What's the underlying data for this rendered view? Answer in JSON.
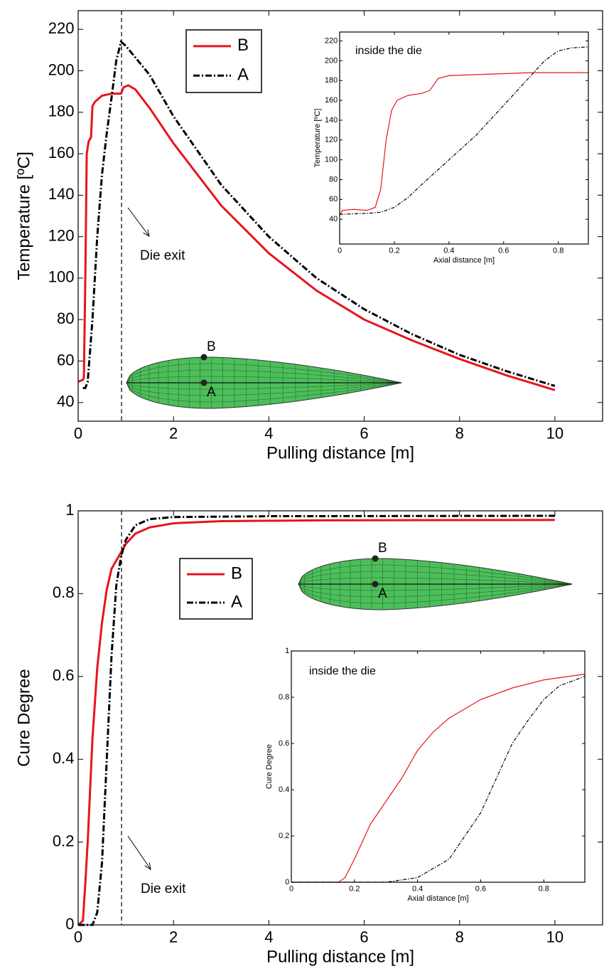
{
  "chart_data": [
    {
      "type": "line",
      "x_label": "Pulling distance [m]",
      "y_label": "Temperature [ºC]",
      "xlim": [
        0,
        11
      ],
      "ylim": [
        31,
        229
      ],
      "xticks": [
        0,
        2,
        4,
        6,
        8,
        10
      ],
      "yticks": [
        40,
        60,
        80,
        100,
        120,
        140,
        160,
        180,
        200,
        220
      ],
      "legend": true,
      "die_exit_x": 0.91,
      "annotations": [
        "Die exit",
        "B",
        "A"
      ],
      "series": [
        {
          "name": "B",
          "color": "#e8141c",
          "style": "solid",
          "x": [
            0,
            0.1,
            0.12,
            0.15,
            0.18,
            0.22,
            0.27,
            0.3,
            0.35,
            0.5,
            0.7,
            0.9,
            0.95,
            1.05,
            1.2,
            1.5,
            2,
            3,
            4,
            5,
            6,
            7,
            8,
            9,
            10
          ],
          "values": [
            50,
            51,
            52,
            100,
            160,
            166,
            168,
            183,
            185,
            188,
            189,
            189,
            192,
            193,
            191,
            182,
            165,
            135,
            112,
            94,
            80,
            70,
            61,
            53,
            46
          ]
        },
        {
          "name": "A",
          "color": "#000000",
          "style": "dashdot",
          "x": [
            0.1,
            0.15,
            0.2,
            0.3,
            0.4,
            0.5,
            0.6,
            0.7,
            0.8,
            0.9,
            1.0,
            1.5,
            2,
            3,
            4,
            5,
            6,
            7,
            8,
            9,
            10
          ],
          "values": [
            47,
            47,
            50,
            80,
            120,
            150,
            170,
            187,
            205,
            214,
            212,
            198,
            178,
            145,
            120,
            100,
            85,
            73,
            63,
            55,
            48
          ]
        }
      ]
    },
    {
      "type": "line",
      "annotation": "inside the die",
      "x_label": "Axial distance [m]",
      "y_label": "Temperature [ºC]",
      "xlim": [
        0,
        0.91
      ],
      "ylim": [
        15,
        229
      ],
      "xticks": [
        0,
        0.2,
        0.4,
        0.6,
        0.8
      ],
      "yticks": [
        40,
        60,
        80,
        100,
        120,
        140,
        160,
        180,
        200,
        220
      ],
      "legend": false,
      "series": [
        {
          "name": "B",
          "color": "#e8141c",
          "style": "solid",
          "x": [
            0,
            0.01,
            0.05,
            0.1,
            0.13,
            0.15,
            0.17,
            0.19,
            0.21,
            0.25,
            0.3,
            0.33,
            0.36,
            0.4,
            0.5,
            0.6,
            0.7,
            0.8,
            0.91
          ],
          "values": [
            44,
            49,
            50,
            49,
            52,
            70,
            120,
            150,
            160,
            165,
            167,
            170,
            182,
            185,
            186,
            187,
            188,
            188,
            188
          ]
        },
        {
          "name": "A",
          "color": "#000000",
          "style": "dashdot",
          "x": [
            0,
            0.1,
            0.15,
            0.2,
            0.25,
            0.3,
            0.4,
            0.5,
            0.6,
            0.7,
            0.75,
            0.8,
            0.85,
            0.91
          ],
          "values": [
            45,
            46,
            47,
            52,
            62,
            75,
            100,
            125,
            155,
            185,
            200,
            210,
            213,
            214
          ]
        }
      ]
    },
    {
      "type": "line",
      "x_label": "Pulling distance [m]",
      "y_label": "Cure Degree",
      "xlim": [
        0,
        11
      ],
      "ylim": [
        0,
        1
      ],
      "xticks": [
        0,
        2,
        4,
        6,
        8,
        10
      ],
      "yticks": [
        0,
        0.2,
        0.4,
        0.6,
        0.8,
        1
      ],
      "legend": true,
      "die_exit_x": 0.91,
      "annotations": [
        "Die exit",
        "B",
        "A"
      ],
      "series": [
        {
          "name": "B",
          "color": "#e8141c",
          "style": "solid",
          "x": [
            0,
            0.1,
            0.15,
            0.2,
            0.3,
            0.4,
            0.5,
            0.6,
            0.7,
            0.8,
            0.9,
            1.0,
            1.2,
            1.5,
            2,
            3,
            5,
            10
          ],
          "values": [
            0,
            0.01,
            0.1,
            0.2,
            0.45,
            0.62,
            0.73,
            0.81,
            0.86,
            0.88,
            0.9,
            0.92,
            0.945,
            0.96,
            0.97,
            0.975,
            0.977,
            0.978
          ]
        },
        {
          "name": "A",
          "color": "#000000",
          "style": "dashdot",
          "x": [
            0,
            0.3,
            0.4,
            0.5,
            0.6,
            0.7,
            0.8,
            0.9,
            1.0,
            1.2,
            1.5,
            2,
            4,
            10
          ],
          "values": [
            0,
            0,
            0.03,
            0.15,
            0.4,
            0.65,
            0.82,
            0.89,
            0.93,
            0.965,
            0.98,
            0.985,
            0.987,
            0.988
          ]
        }
      ]
    },
    {
      "type": "line",
      "annotation": "inside the die",
      "x_label": "Axial distance [m]",
      "y_label": "Cure Degree",
      "xlim": [
        0,
        0.93
      ],
      "ylim": [
        0,
        1
      ],
      "xticks": [
        0,
        0.2,
        0.4,
        0.6,
        0.8
      ],
      "yticks": [
        0,
        0.2,
        0.4,
        0.6,
        0.8,
        1
      ],
      "legend": false,
      "series": [
        {
          "name": "B",
          "color": "#e8141c",
          "style": "solid",
          "x": [
            0,
            0.15,
            0.17,
            0.2,
            0.25,
            0.3,
            0.35,
            0.4,
            0.45,
            0.5,
            0.6,
            0.7,
            0.8,
            0.93
          ],
          "values": [
            0,
            0,
            0.02,
            0.1,
            0.25,
            0.35,
            0.45,
            0.57,
            0.65,
            0.71,
            0.79,
            0.84,
            0.875,
            0.9
          ]
        },
        {
          "name": "A",
          "color": "#000000",
          "style": "dashdot",
          "x": [
            0,
            0.3,
            0.4,
            0.5,
            0.6,
            0.65,
            0.7,
            0.75,
            0.8,
            0.85,
            0.93
          ],
          "values": [
            0,
            0,
            0.02,
            0.1,
            0.3,
            0.45,
            0.6,
            0.7,
            0.79,
            0.85,
            0.89
          ]
        }
      ]
    }
  ]
}
